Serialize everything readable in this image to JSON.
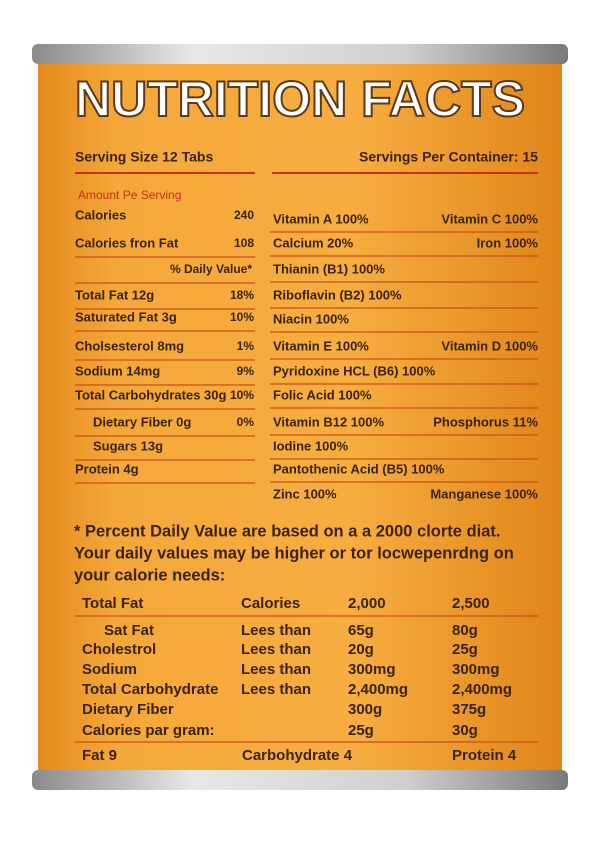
{
  "header": {
    "title": "NUTRITION FACTS",
    "serving_size": "Serving Size 12 Tabs",
    "servings": "Servings Per Container: 15"
  },
  "left": {
    "heading": "Amount Pe Serving",
    "rows": [
      [
        "Calories",
        "240"
      ],
      [
        "Calories fron Fat",
        "108"
      ],
      [
        "% Daily Value*"
      ],
      [
        "Total Fat 12g",
        "18%"
      ],
      [
        "Saturated Fat 3g",
        "10%"
      ],
      [
        "Cholsesterol 8mg",
        "1%"
      ],
      [
        "Sodium 14mg",
        "9%"
      ],
      [
        "Total Carbohydrates 30g",
        "10%"
      ],
      [
        "Dietary Fiber 0g",
        "0%"
      ],
      [
        "Sugars 13g"
      ],
      [
        "Protein 4g"
      ]
    ]
  },
  "right": {
    "rows": [
      [
        "Vitamin A 100%",
        "Vitamin C 100%"
      ],
      [
        "Calcium 20%",
        "Iron 100%"
      ],
      [
        "Thianin (B1) 100%"
      ],
      [
        "Riboflavin (B2) 100%"
      ],
      [
        "Niacin 100%"
      ],
      [
        "Vitamin E 100%",
        "Vitamin D 100%"
      ],
      [
        "Pyridoxine HCL (B6) 100%"
      ],
      [
        "Folic Acid 100%"
      ],
      [
        "Vitamin B12 100%",
        "Phosphorus 11%"
      ],
      [
        "Iodine 100%"
      ],
      [
        "Pantothenic Acid (B5) 100%"
      ],
      [
        "Zinc 100%",
        "Manganese 100%"
      ]
    ]
  },
  "footnote": [
    "* Percent Daily Value are based on a a 2000 clorte diat.",
    "Your daily values may be higher or tor locwepenrdng on",
    "your calorie needs:"
  ],
  "table": {
    "rows": [
      {
        "label": "Total Fat",
        "compare": "Calories",
        "a": "2,000",
        "b": "2,500"
      },
      {
        "label": "Sat Fat",
        "compare": "Lees than",
        "a": "65g",
        "b": "80g"
      },
      {
        "label": "Cholestrol",
        "compare": "Lees than",
        "a": "20g",
        "b": "25g"
      },
      {
        "label": "Sodium",
        "compare": "Lees than",
        "a": "300mg",
        "b": "300mg"
      },
      {
        "label": "Total Carbohydrate",
        "compare": "Lees than",
        "a": "2,400mg",
        "b": "2,400mg"
      },
      {
        "label": "Dietary Fiber",
        "a": "300g",
        "b": "375g"
      },
      {
        "label": "Calories par gram:",
        "a": "25g",
        "b": "30g"
      }
    ],
    "footer": [
      "Fat 9",
      "Carbohydrate 4",
      "Protein 4"
    ]
  }
}
